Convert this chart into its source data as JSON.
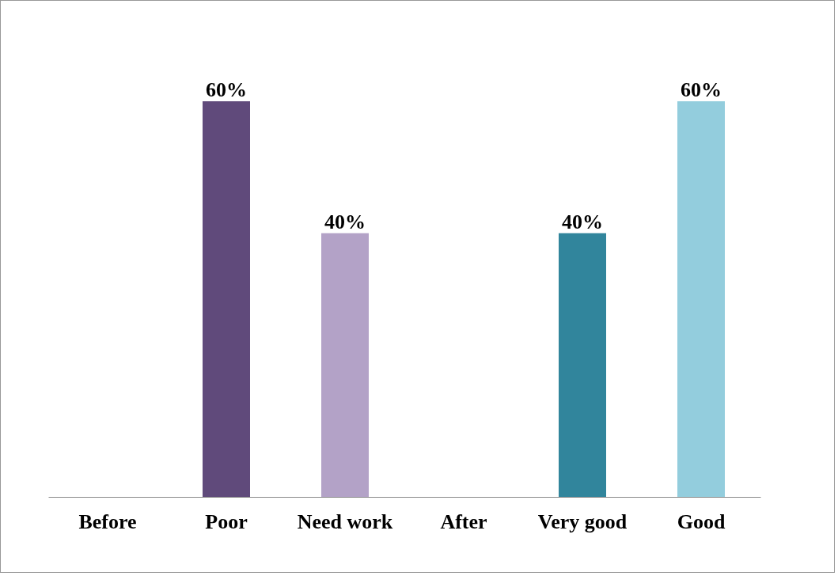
{
  "chart_data": {
    "type": "bar",
    "categories": [
      "Before",
      "Poor",
      "Need work",
      "After",
      "Very good",
      "Good"
    ],
    "values": [
      null,
      60,
      40,
      null,
      40,
      60
    ],
    "colors": [
      "#604a7b",
      "#604a7b",
      "#b3a2c7",
      "#31859c",
      "#31859c",
      "#93cddd"
    ],
    "value_labels": [
      null,
      "60%",
      "40%",
      null,
      "40%",
      "60%"
    ],
    "tick_labels": "x",
    "grid": false
  }
}
